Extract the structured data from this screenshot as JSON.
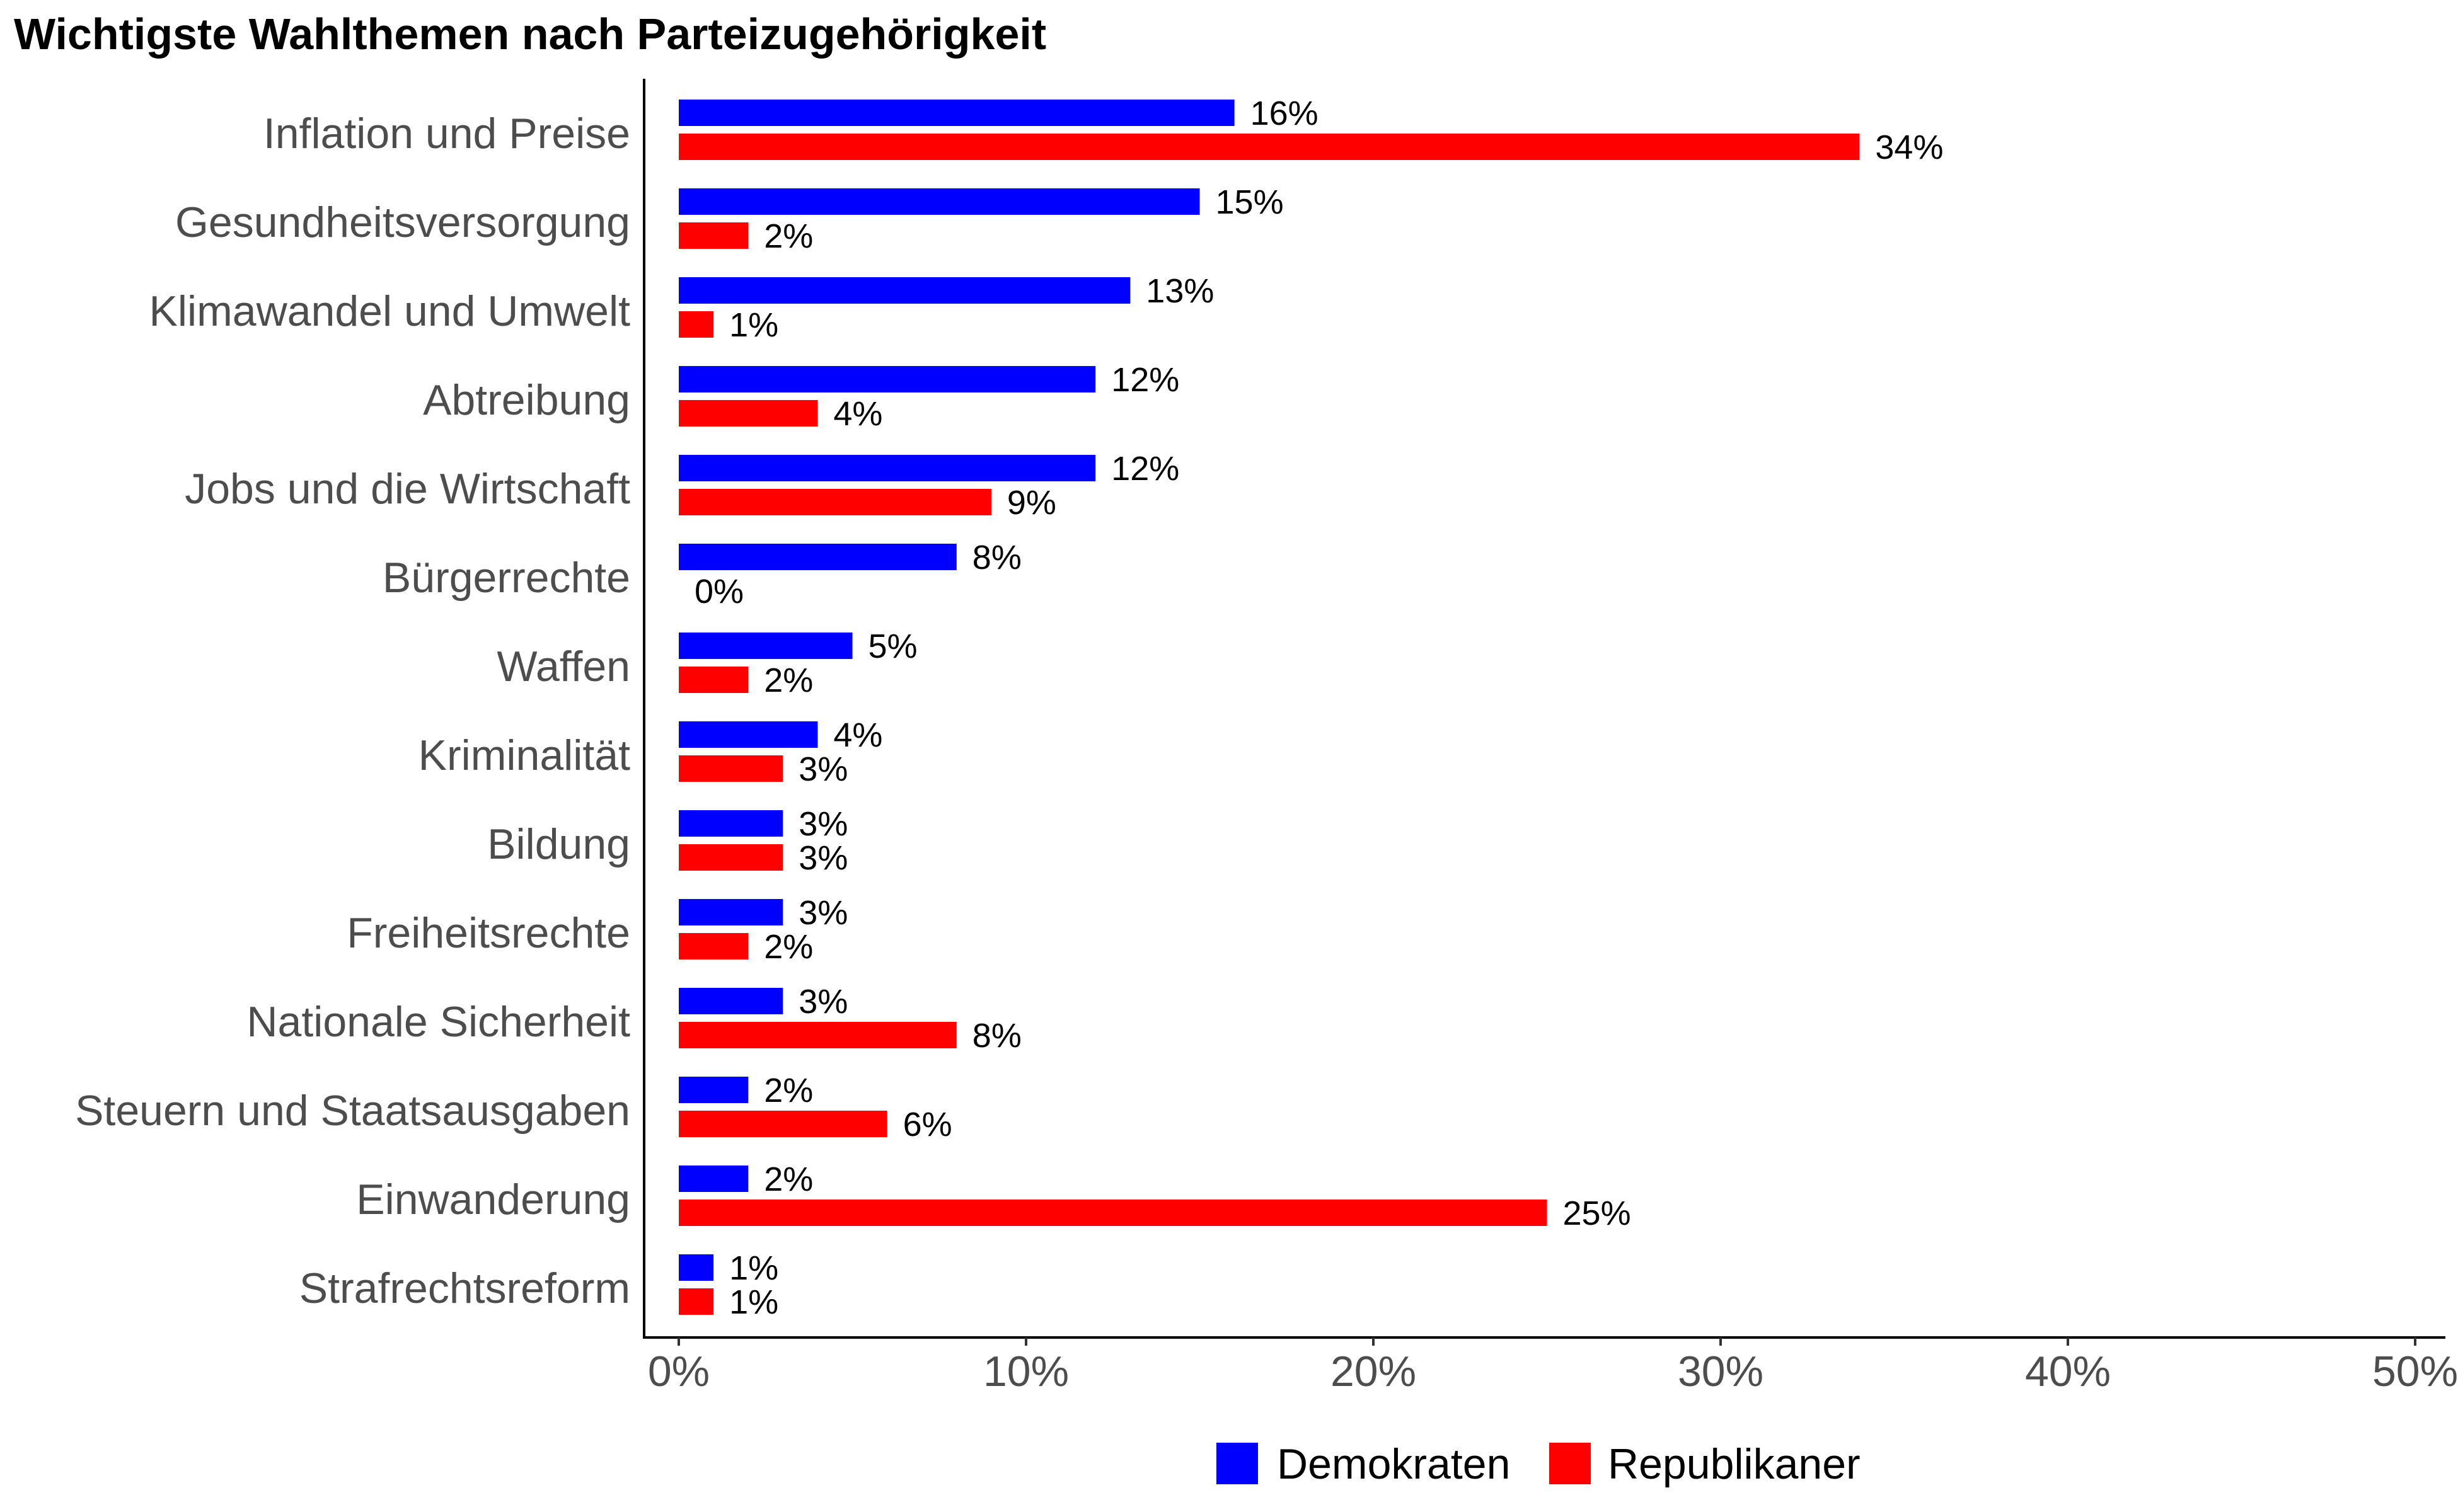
{
  "chart_data": {
    "type": "bar",
    "orientation": "horizontal",
    "title": "Wichtigste Wahlthemen nach Parteizugehörigkeit",
    "xlabel": "",
    "ylabel": "",
    "xlim": [
      0,
      50
    ],
    "x_ticks": [
      "0%",
      "10%",
      "20%",
      "30%",
      "40%",
      "50%"
    ],
    "grid": false,
    "legend_position": "bottom",
    "categories": [
      "Inflation und Preise",
      "Gesundheitsversorgung",
      "Klimawandel und Umwelt",
      "Abtreibung",
      "Jobs und die Wirtschaft",
      "Bürgerrechte",
      "Waffen",
      "Kriminalität",
      "Bildung",
      "Freiheitsrechte",
      "Nationale Sicherheit",
      "Steuern und Staatsausgaben",
      "Einwanderung",
      "Strafrechtsreform"
    ],
    "series": [
      {
        "name": "Demokraten",
        "color": "#0000ff",
        "values": [
          16,
          15,
          13,
          12,
          12,
          8,
          5,
          4,
          3,
          3,
          3,
          2,
          2,
          1
        ],
        "labels": [
          "16%",
          "15%",
          "13%",
          "12%",
          "12%",
          "8%",
          "5%",
          "4%",
          "3%",
          "3%",
          "3%",
          "2%",
          "2%",
          "1%"
        ]
      },
      {
        "name": "Republikaner",
        "color": "#ff0000",
        "values": [
          34,
          2,
          1,
          4,
          9,
          0,
          2,
          3,
          3,
          2,
          8,
          6,
          25,
          1
        ],
        "labels": [
          "34%",
          "2%",
          "1%",
          "4%",
          "9%",
          "0%",
          "2%",
          "3%",
          "3%",
          "2%",
          "8%",
          "6%",
          "25%",
          "1%"
        ]
      }
    ]
  }
}
